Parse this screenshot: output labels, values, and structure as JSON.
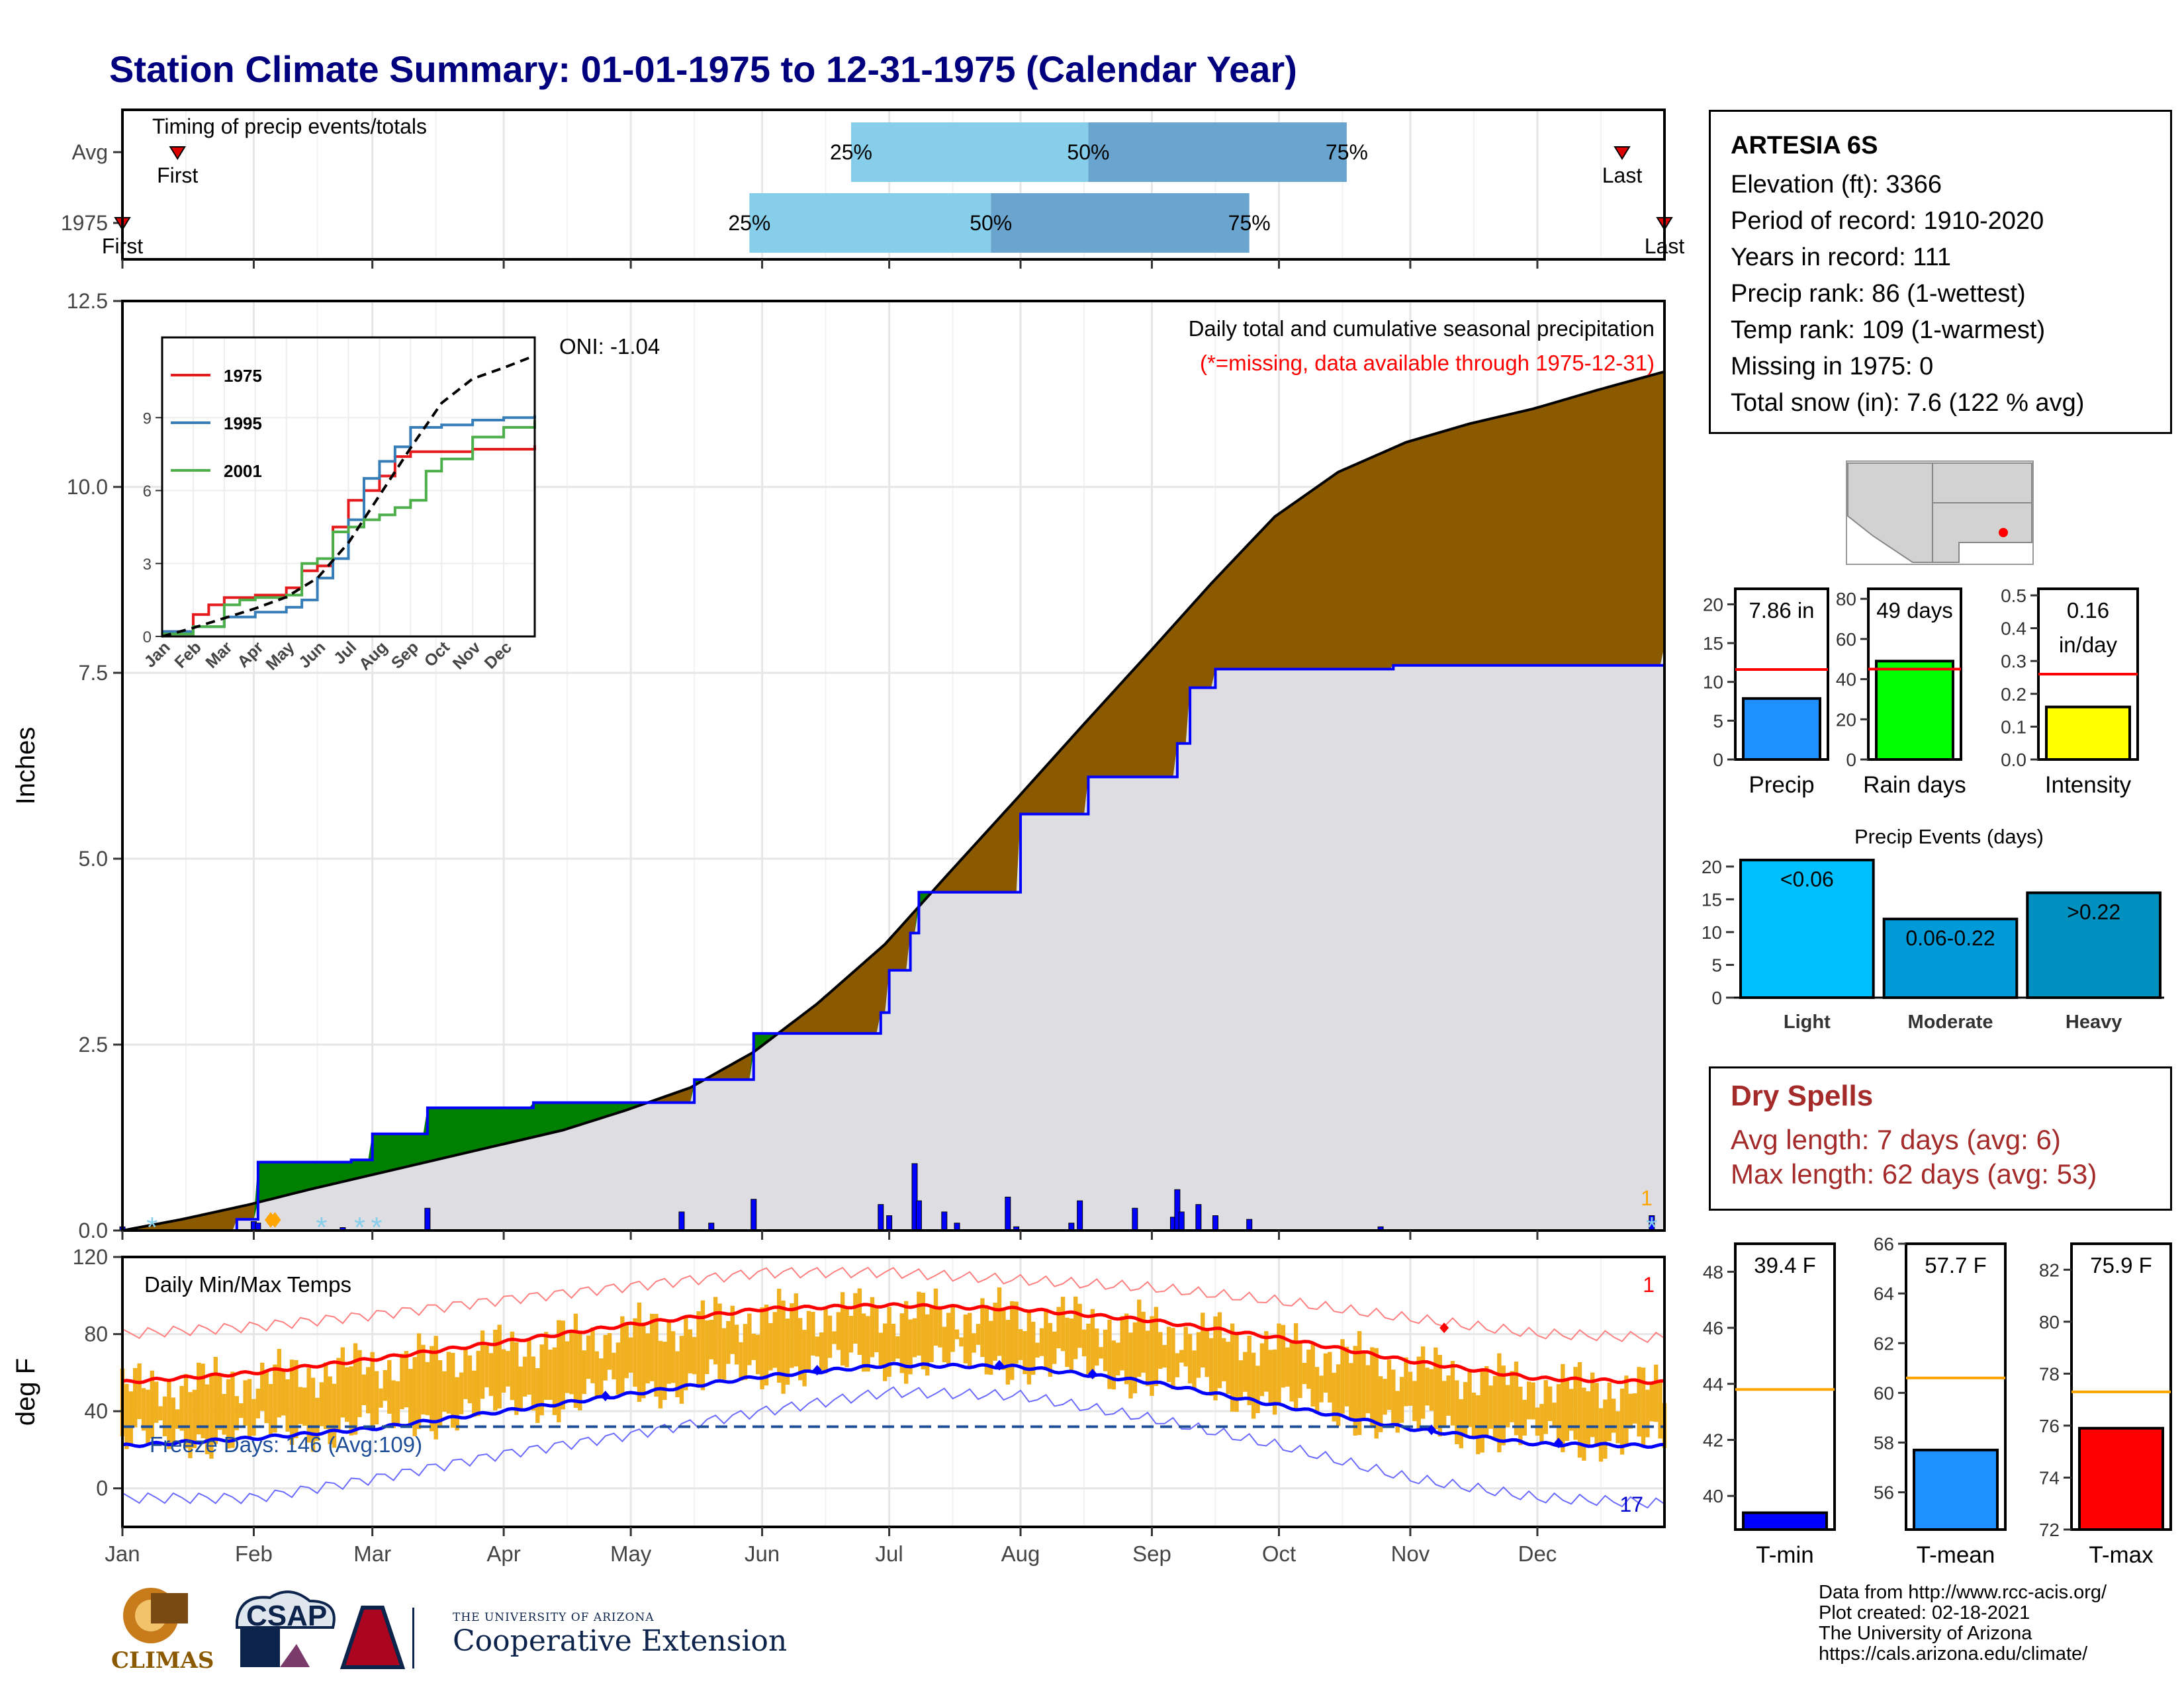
{
  "title": "Station Climate Summary: 01-01-1975 to 12-31-1975 (Calendar Year)",
  "station": {
    "name": "ARTESIA 6S",
    "lines": [
      "Elevation (ft): 3366",
      "Period of record: 1910-2020",
      "Years in record: 111",
      "Precip rank: 86 (1-wettest)",
      "Temp rank: 109 (1-warmest)",
      "Missing in 1975: 0",
      "Total snow (in): 7.6 (122 % avg)"
    ]
  },
  "dry_spells": {
    "title": "Dry Spells",
    "avg": "Avg length: 7 days (avg: 6)",
    "max": "Max length: 62 days (avg: 53)"
  },
  "credits": [
    "Data from http://www.rcc-acis.org/",
    "Plot created: 02-18-2021",
    "The University of Arizona",
    "https://cals.arizona.edu/climate/"
  ],
  "logos": {
    "climas": "CLIMAS",
    "csap": "CSAP",
    "extension_small": "THE UNIVERSITY OF ARIZONA",
    "extension_big": "Cooperative Extension"
  },
  "colors": {
    "dark_blue_title": "#00007f",
    "precip_above": "#8b5a00",
    "precip_below": "#008000",
    "normal_area": "#dddde2",
    "temp_bars": "#f0b020",
    "tmax_line": "#ff0000",
    "tmin_line": "#0000ff",
    "dry_spell": "#a52a2a"
  },
  "chart_data": [
    {
      "id": "timing",
      "type": "bar",
      "title": "Timing of precip events/totals",
      "rows": [
        "Avg",
        "1975"
      ],
      "quartiles": {
        "Avg": {
          "q25": 173,
          "q50": 229,
          "q75": 290,
          "first": 14,
          "last": 355
        },
        "1975": {
          "q25": 149,
          "q50": 206,
          "q75": 267,
          "first": 1,
          "last": 365
        }
      },
      "row_labels": {
        "Avg": {
          "q25": "25%",
          "q50": "50%",
          "q75": "75%",
          "first": "First",
          "last": "Last"
        },
        "1975": {
          "q25": "25%",
          "q50": "50%",
          "q75": "75%",
          "first": "First",
          "last": "Last"
        }
      }
    },
    {
      "id": "precip",
      "type": "area",
      "title": "Daily total and cumulative seasonal precipitation",
      "subtitle": "(*=missing, data available through 1975-12-31)",
      "ylabel": "Inches",
      "ylim": [
        0,
        12.5
      ],
      "yticks": [
        "0.0",
        "2.5",
        "5.0",
        "7.5",
        "10.0",
        "12.5"
      ],
      "oni": "ONI: -1.04",
      "snow_count": "1",
      "normal_cumulative": {
        "day": [
          1,
          15,
          31,
          45,
          60,
          75,
          90,
          105,
          120,
          135,
          150,
          165,
          181,
          196,
          212,
          227,
          243,
          258,
          273,
          288,
          304,
          319,
          334,
          349,
          365
        ],
        "value": [
          0.0,
          0.15,
          0.35,
          0.55,
          0.75,
          0.95,
          1.15,
          1.35,
          1.62,
          1.92,
          2.4,
          3.05,
          3.85,
          4.8,
          5.8,
          6.75,
          7.75,
          8.7,
          9.6,
          10.2,
          10.6,
          10.85,
          11.05,
          11.3,
          11.55
        ]
      },
      "observed_cumulative": {
        "day": [
          1,
          28,
          33,
          48,
          55,
          60,
          70,
          73,
          89,
          98,
          133,
          136,
          150,
          152,
          180,
          182,
          187,
          189,
          210,
          213,
          227,
          229,
          250,
          253,
          259,
          268,
          298,
          301,
          362,
          365
        ],
        "value": [
          0.0,
          0.15,
          0.92,
          0.92,
          0.95,
          1.3,
          1.3,
          1.65,
          1.65,
          1.72,
          1.72,
          2.03,
          2.65,
          2.65,
          2.93,
          3.5,
          4.0,
          4.55,
          4.55,
          5.6,
          5.6,
          6.1,
          6.55,
          7.3,
          7.55,
          7.55,
          7.55,
          7.6,
          7.6,
          7.86
        ]
      },
      "daily_precip": {
        "day": [
          1,
          32,
          33,
          53,
          73,
          133,
          140,
          150,
          180,
          182,
          188,
          189,
          195,
          198,
          210,
          212,
          225,
          227,
          240,
          249,
          250,
          251,
          255,
          259,
          267,
          298,
          362
        ],
        "value": [
          0.05,
          0.12,
          0.1,
          0.04,
          0.3,
          0.25,
          0.1,
          0.42,
          0.35,
          0.2,
          0.9,
          0.4,
          0.25,
          0.1,
          0.45,
          0.05,
          0.1,
          0.4,
          0.3,
          0.18,
          0.55,
          0.25,
          0.35,
          0.2,
          0.15,
          0.05,
          0.2
        ]
      },
      "inset": {
        "type": "line",
        "ylim": [
          0,
          12.3
        ],
        "yticks": [
          "0",
          "3",
          "6",
          "9"
        ],
        "xticks": [
          "Jan",
          "Feb",
          "Mar",
          "Apr",
          "May",
          "Jun",
          "Jul",
          "Aug",
          "Sep",
          "Oct",
          "Nov",
          "Dec"
        ],
        "series": [
          {
            "name": "1975",
            "color": "#e41a1c",
            "month": [
              0,
              1,
              1.5,
              2,
              3,
              4,
              4.5,
              5,
              5.5,
              6,
              6.5,
              7,
              7.5,
              8,
              8.5,
              9,
              10,
              11,
              12
            ],
            "value": [
              0.2,
              0.9,
              1.3,
              1.6,
              1.7,
              2.0,
              2.7,
              2.9,
              4.5,
              5.6,
              6.0,
              6.6,
              7.4,
              7.6,
              7.6,
              7.6,
              7.7,
              7.7,
              7.86
            ]
          },
          {
            "name": "1995",
            "color": "#377eb8",
            "month": [
              0,
              1,
              2,
              3,
              4,
              4.5,
              5,
              5.5,
              6,
              6.5,
              7,
              7.5,
              8,
              9,
              10,
              11,
              12
            ],
            "value": [
              0.2,
              0.4,
              0.8,
              1.0,
              1.2,
              1.5,
              2.4,
              3.2,
              4.8,
              6.5,
              7.2,
              7.8,
              8.6,
              8.7,
              8.9,
              9.0,
              9.1
            ]
          },
          {
            "name": "2001",
            "color": "#4daf4a",
            "month": [
              0,
              1,
              2,
              2.5,
              3,
              4,
              4.5,
              5,
              5.5,
              6,
              6.5,
              7,
              7.5,
              8,
              8.5,
              9,
              10,
              11,
              12
            ],
            "value": [
              0.1,
              0.4,
              1.3,
              1.5,
              1.6,
              1.7,
              3.0,
              3.2,
              4.3,
              4.5,
              4.8,
              5.0,
              5.3,
              5.6,
              6.8,
              7.3,
              8.2,
              8.6,
              8.9
            ]
          },
          {
            "name": "avg",
            "color": "#000000",
            "dash": true,
            "month": [
              0,
              1,
              2,
              3,
              4,
              5,
              6,
              7,
              8,
              9,
              10,
              11,
              12
            ],
            "value": [
              0,
              0.35,
              0.75,
              1.15,
              1.62,
              2.4,
              3.85,
              5.8,
              7.75,
              9.6,
              10.6,
              11.05,
              11.55
            ]
          }
        ]
      }
    },
    {
      "id": "temps",
      "type": "bar",
      "title": "Daily Min/Max Temps",
      "ylabel": "deg F",
      "ylim": [
        -20,
        120
      ],
      "yticks": [
        "0",
        "40",
        "80",
        "120"
      ],
      "freeze_label": "Freeze Days: 146 (Avg:109)",
      "freeze_level": 32,
      "count_top": "1",
      "count_bottom": "17",
      "xticks": [
        "Jan",
        "Feb",
        "Mar",
        "Apr",
        "May",
        "Jun",
        "Jul",
        "Aug",
        "Sep",
        "Oct",
        "Nov",
        "Dec"
      ],
      "normal_tmax": {
        "day": [
          1,
          32,
          60,
          91,
          121,
          152,
          182,
          213,
          244,
          274,
          305,
          335,
          365
        ],
        "value": [
          55,
          60,
          67,
          76,
          85,
          93,
          95,
          93,
          87,
          78,
          66,
          57,
          55
        ]
      },
      "normal_tmin": {
        "day": [
          1,
          32,
          60,
          91,
          121,
          152,
          182,
          213,
          244,
          274,
          305,
          335,
          365
        ],
        "value": [
          22,
          26,
          31,
          40,
          49,
          58,
          64,
          63,
          55,
          43,
          31,
          23,
          22
        ]
      },
      "record_high_env": {
        "day": [
          1,
          32,
          60,
          91,
          121,
          152,
          182,
          213,
          244,
          274,
          305,
          335,
          365
        ],
        "value": [
          80,
          84,
          90,
          98,
          105,
          112,
          112,
          108,
          104,
          97,
          88,
          80,
          78
        ]
      },
      "record_low_env": {
        "day": [
          1,
          32,
          60,
          91,
          121,
          152,
          182,
          213,
          244,
          274,
          305,
          335,
          365
        ],
        "value": [
          -5,
          -5,
          5,
          18,
          28,
          40,
          50,
          48,
          36,
          22,
          5,
          -5,
          -8
        ]
      }
    },
    {
      "id": "precip_summary",
      "type": "bar",
      "categories": [
        "Precip",
        "Rain days",
        "Intensity"
      ],
      "values": [
        7.86,
        49,
        0.16
      ],
      "labels": [
        "7.86 in",
        "49 days",
        "0.16 in/day"
      ],
      "averages": [
        11.6,
        45,
        0.26
      ],
      "ylims": [
        [
          0,
          22
        ],
        [
          0,
          85
        ],
        [
          0,
          0.52
        ]
      ],
      "yticks": [
        [
          "0",
          "5",
          "10",
          "15",
          "20"
        ],
        [
          "0",
          "20",
          "40",
          "60",
          "80"
        ],
        [
          "0.0",
          "0.1",
          "0.2",
          "0.3",
          "0.4",
          "0.5"
        ]
      ],
      "colors": [
        "#1e90ff",
        "#00ff00",
        "#ffff00"
      ]
    },
    {
      "id": "precip_events",
      "type": "bar",
      "title": "Precip Events (days)",
      "categories": [
        "Light",
        "Moderate",
        "Heavy"
      ],
      "values": [
        21,
        12,
        16
      ],
      "labels": [
        "<0.06",
        "0.06-0.22",
        ">0.22"
      ],
      "ylim": [
        0,
        21.5
      ],
      "yticks": [
        "0",
        "5",
        "10",
        "15",
        "20"
      ],
      "colors": [
        "#00bfff",
        "#009ad8",
        "#0090c0"
      ]
    },
    {
      "id": "temp_summary",
      "type": "bar",
      "categories": [
        "T-min",
        "T-mean",
        "T-max"
      ],
      "values": [
        39.4,
        57.7,
        75.9
      ],
      "labels": [
        "39.4 F",
        "57.7 F",
        "75.9 F"
      ],
      "averages": [
        43.8,
        60.6,
        77.3
      ],
      "ylims": [
        [
          38.8,
          49
        ],
        [
          54.5,
          66
        ],
        [
          72,
          83
        ]
      ],
      "yticks": [
        [
          "40",
          "42",
          "44",
          "46",
          "48"
        ],
        [
          "56",
          "58",
          "60",
          "62",
          "64",
          "66"
        ],
        [
          "72",
          "74",
          "76",
          "78",
          "80",
          "82"
        ]
      ],
      "colors": [
        "#0000ff",
        "#1e90ff",
        "#ff0000"
      ]
    }
  ]
}
